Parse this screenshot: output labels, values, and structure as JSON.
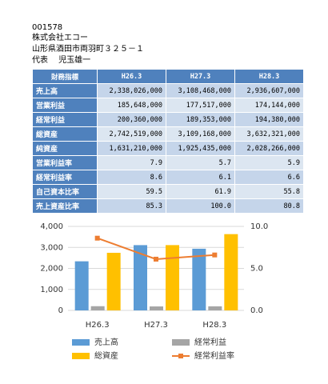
{
  "header": {
    "code": "001578",
    "company": "株式会社エコー",
    "address": "山形県酒田市両羽町３２５－１",
    "representative": "代表　 児玉雄一"
  },
  "table": {
    "header": [
      "財務指標",
      "H26.3",
      "H27.3",
      "H28.3"
    ],
    "rows": [
      [
        "売上高",
        "2,338,026,000",
        "3,108,468,000",
        "2,936,607,000"
      ],
      [
        "営業利益",
        "185,648,000",
        "177,517,000",
        "174,144,000"
      ],
      [
        "経常利益",
        "200,360,000",
        "189,353,000",
        "194,380,000"
      ],
      [
        "総資産",
        "2,742,519,000",
        "3,109,168,000",
        "3,632,321,000"
      ],
      [
        "純資産",
        "1,631,210,000",
        "1,925,435,000",
        "2,028,266,000"
      ],
      [
        "営業利益率",
        "7.9",
        "5.7",
        "5.9"
      ],
      [
        "経常利益率",
        "8.6",
        "6.1",
        "6.6"
      ],
      [
        "自己資本比率",
        "59.5",
        "61.9",
        "55.8"
      ],
      [
        "売上資産比率",
        "85.3",
        "100.0",
        "80.8"
      ]
    ]
  },
  "chart_data": {
    "type": "bar",
    "categories": [
      "H26.3",
      "H27.3",
      "H28.3"
    ],
    "series": [
      {
        "name": "売上高",
        "color": "#5b9bd5",
        "values": [
          2338,
          3108,
          2937
        ]
      },
      {
        "name": "経常利益",
        "color": "#a5a5a5",
        "values": [
          200,
          189,
          194
        ]
      },
      {
        "name": "総資産",
        "color": "#ffc000",
        "values": [
          2743,
          3109,
          3632
        ]
      },
      {
        "name": "経常利益率",
        "color": "#ed7d31",
        "type": "line",
        "axis": "y2",
        "values": [
          8.6,
          6.1,
          6.6
        ]
      }
    ],
    "ylim": [
      0,
      4000
    ],
    "yticks": [
      0,
      {
        "value": 1000,
        "label": "1,000"
      },
      {
        "value": 2000,
        "label": "2,000"
      },
      {
        "value": 3000,
        "label": "3,000"
      },
      {
        "value": 4000,
        "label": "4,000"
      }
    ],
    "y2lim": [
      0,
      10
    ],
    "y2ticks": [
      {
        "value": 0,
        "label": "0.0"
      },
      {
        "value": 5,
        "label": "5.0"
      },
      {
        "value": 10,
        "label": "10.0"
      }
    ],
    "grid": true
  }
}
